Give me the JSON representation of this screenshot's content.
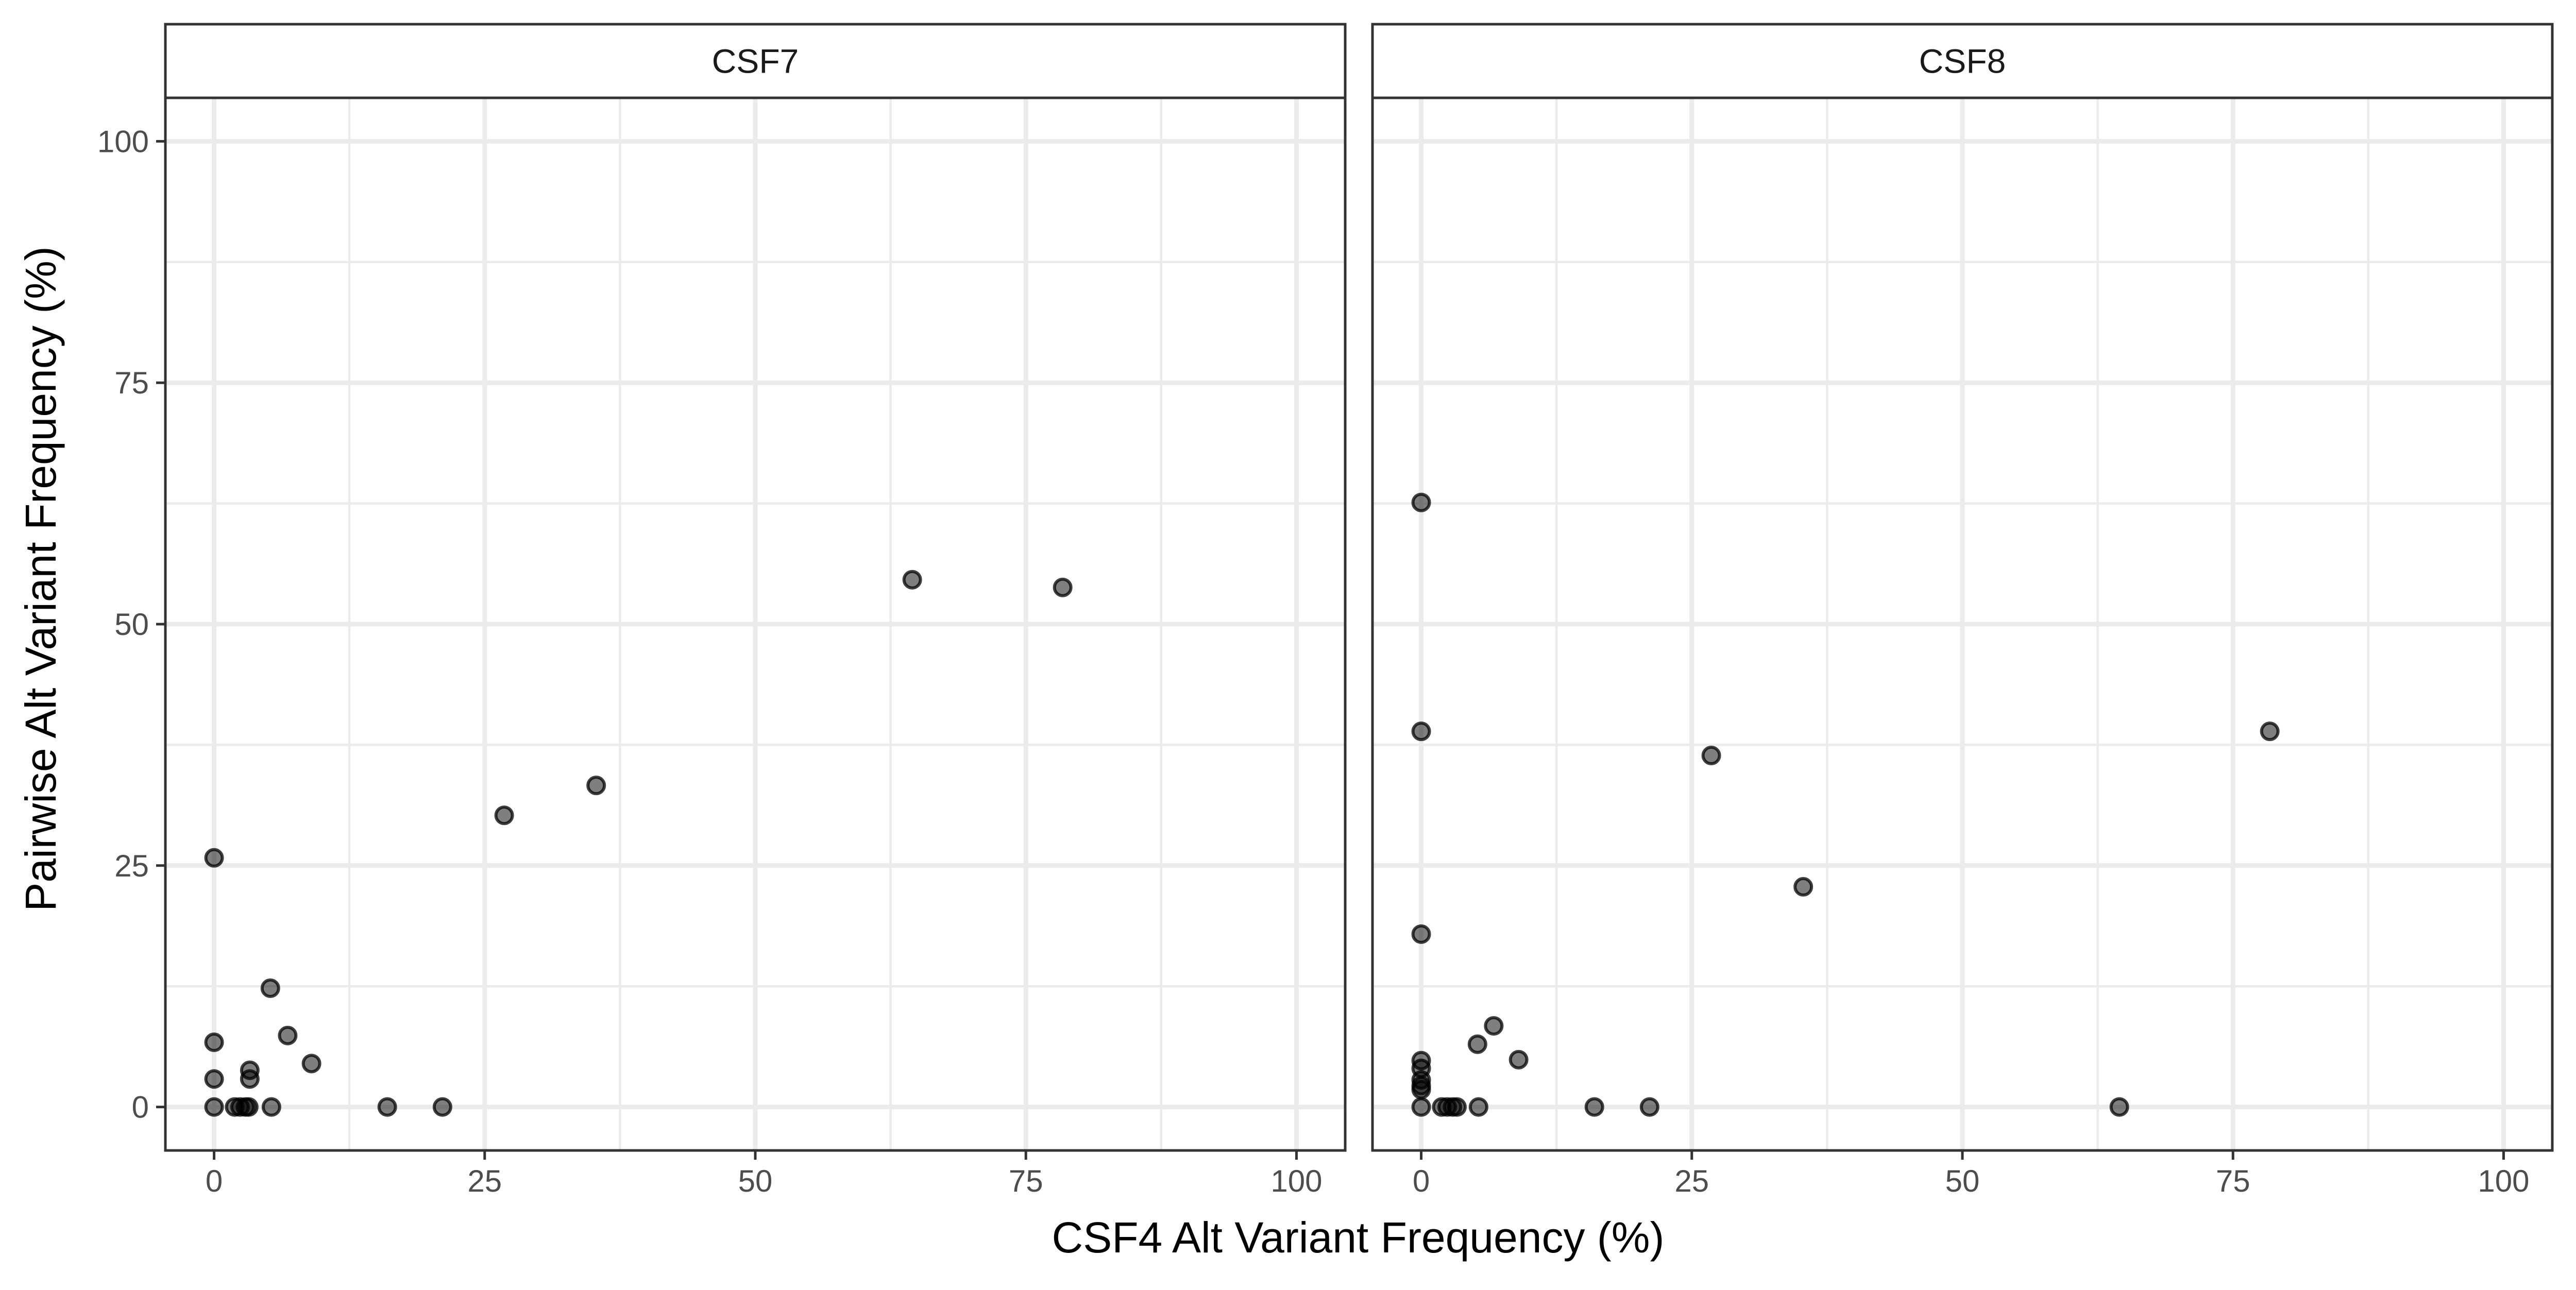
{
  "chart_data": {
    "type": "scatter",
    "xlabel": "CSF4 Alt Variant Frequency (%)",
    "ylabel": "Pairwise Alt Variant Frequency (%)",
    "xlim": [
      -4.5,
      104.5
    ],
    "ylim": [
      -4.5,
      104.5
    ],
    "x_ticks": [
      0,
      25,
      50,
      75,
      100
    ],
    "y_ticks": [
      0,
      25,
      50,
      75,
      100
    ],
    "x_tick_labels": [
      "0",
      "25",
      "50",
      "75",
      "100"
    ],
    "y_tick_labels": [
      "0",
      "25",
      "50",
      "75",
      "100"
    ],
    "grid": true,
    "theme": "bw",
    "panels": [
      {
        "strip_label": "CSF7",
        "points": [
          {
            "x": 0,
            "y": 25.8
          },
          {
            "x": 0,
            "y": 6.7
          },
          {
            "x": 0,
            "y": 2.9
          },
          {
            "x": 0,
            "y": 0
          },
          {
            "x": 1.9,
            "y": 0
          },
          {
            "x": 2.4,
            "y": 0
          },
          {
            "x": 2.9,
            "y": 0
          },
          {
            "x": 3.2,
            "y": 0
          },
          {
            "x": 3.3,
            "y": 3.8
          },
          {
            "x": 3.3,
            "y": 2.9
          },
          {
            "x": 5.2,
            "y": 12.3
          },
          {
            "x": 5.3,
            "y": 0
          },
          {
            "x": 6.8,
            "y": 7.4
          },
          {
            "x": 9.0,
            "y": 4.5
          },
          {
            "x": 16.0,
            "y": 0
          },
          {
            "x": 21.1,
            "y": 0
          },
          {
            "x": 26.8,
            "y": 30.2
          },
          {
            "x": 35.3,
            "y": 33.3
          },
          {
            "x": 64.5,
            "y": 54.6
          },
          {
            "x": 78.4,
            "y": 53.8
          }
        ]
      },
      {
        "strip_label": "CSF8",
        "points": [
          {
            "x": 0,
            "y": 62.6
          },
          {
            "x": 0,
            "y": 38.9
          },
          {
            "x": 0,
            "y": 17.9
          },
          {
            "x": 0,
            "y": 4.8
          },
          {
            "x": 0,
            "y": 4.0
          },
          {
            "x": 0,
            "y": 2.8
          },
          {
            "x": 0,
            "y": 2.2
          },
          {
            "x": 0,
            "y": 1.8
          },
          {
            "x": 0,
            "y": 0
          },
          {
            "x": 1.9,
            "y": 0
          },
          {
            "x": 2.4,
            "y": 0
          },
          {
            "x": 2.9,
            "y": 0
          },
          {
            "x": 3.3,
            "y": 0
          },
          {
            "x": 5.2,
            "y": 6.5
          },
          {
            "x": 5.3,
            "y": 0
          },
          {
            "x": 6.7,
            "y": 8.4
          },
          {
            "x": 9.0,
            "y": 4.9
          },
          {
            "x": 16.0,
            "y": 0
          },
          {
            "x": 21.1,
            "y": 0
          },
          {
            "x": 26.8,
            "y": 36.4
          },
          {
            "x": 35.3,
            "y": 22.8
          },
          {
            "x": 64.5,
            "y": 0
          },
          {
            "x": 78.4,
            "y": 38.9
          }
        ]
      }
    ]
  }
}
